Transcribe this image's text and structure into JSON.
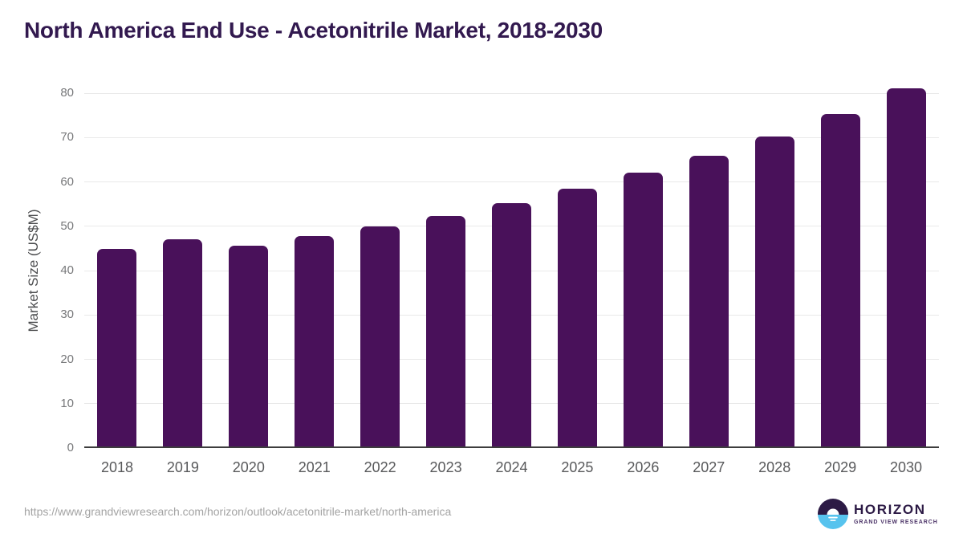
{
  "title": "North America End Use - Acetonitrile Market, 2018-2030",
  "footer": {
    "source_url": "https://www.grandviewresearch.com/horizon/outlook/acetonitrile-market/north-america",
    "logo": {
      "name": "HORIZON",
      "subtitle": "GRAND VIEW RESEARCH"
    }
  },
  "colors": {
    "bar": "#49115a",
    "title": "#32194f",
    "gridline": "#e9e9e9",
    "axis_line": "#3d3d3d",
    "y_tick_label": "#77787a",
    "x_tick_label": "#58595b",
    "axis_title": "#4b4c4e",
    "url_text": "#a3a3a3",
    "logo_dark_purple": "#2c1a45",
    "logo_light_blue": "#57c3ee",
    "logo_subtitle": "#4b3367"
  },
  "chart_data": {
    "type": "bar",
    "title": "North America End Use - Acetonitrile Market, 2018-2030",
    "categories": [
      "2018",
      "2019",
      "2020",
      "2021",
      "2022",
      "2023",
      "2024",
      "2025",
      "2026",
      "2027",
      "2028",
      "2029",
      "2030"
    ],
    "values": [
      44.9,
      47.0,
      45.6,
      47.8,
      50.0,
      52.4,
      55.2,
      58.5,
      62.0,
      65.9,
      70.3,
      75.3,
      81.0
    ],
    "xlabel": "",
    "ylabel": "Market Size (US$M)",
    "ylim": [
      0,
      80
    ],
    "yticks": [
      0,
      10,
      20,
      30,
      40,
      50,
      60,
      70,
      80
    ],
    "grid": "horizontal",
    "legend": false,
    "bar_color": "#49115a"
  }
}
